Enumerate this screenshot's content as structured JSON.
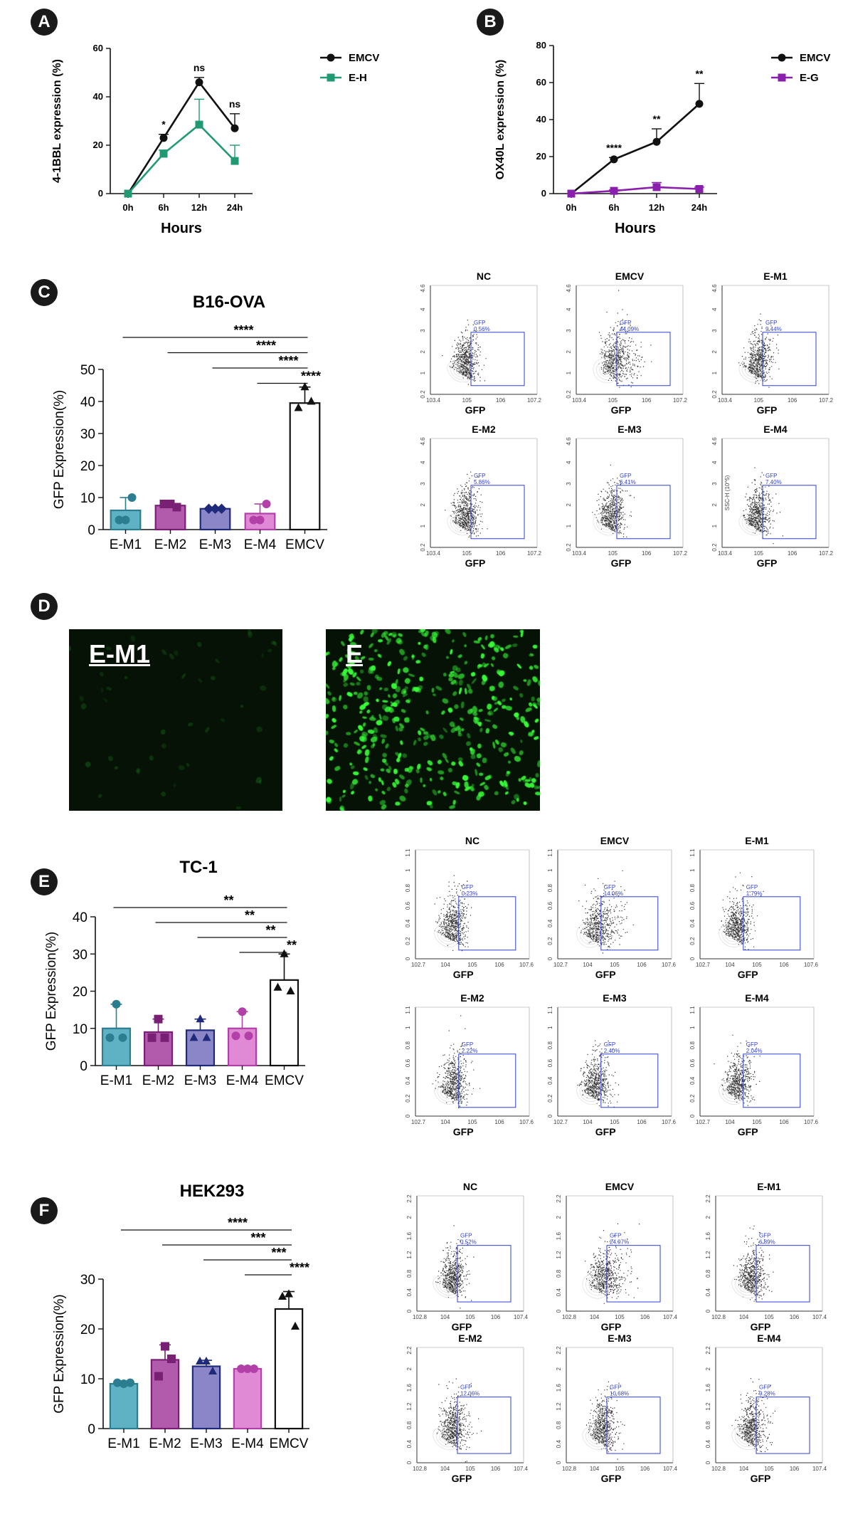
{
  "panels": {
    "A": "A",
    "B": "B",
    "C": "C",
    "D": "D",
    "E": "E",
    "F": "F"
  },
  "colors": {
    "emcv": "#111111",
    "eh": "#1f9a73",
    "eg": "#8a1fae",
    "m1": "#5fb2c3",
    "m2": "#b25bad",
    "m3": "#8a86c8",
    "m4": "#e08ad6",
    "m1_edge": "#2b7d8f",
    "m2_edge": "#7a2074",
    "m3_edge": "#1f2a7a",
    "m4_edge": "#b33fa8",
    "gate": "#2f3fd0",
    "gfp_green": "#39ff39"
  },
  "chart_data": [
    {
      "id": "A",
      "type": "line",
      "categories": [
        "0h",
        "6h",
        "12h",
        "24h"
      ],
      "xlabel": "Hours",
      "ylabel": "4-1BBL expression (%)",
      "ylim": [
        0,
        60
      ],
      "yticks": [
        "0",
        "20",
        "40",
        "60"
      ],
      "series": [
        {
          "name": "EMCV",
          "values": [
            0,
            23,
            46,
            27
          ],
          "err": [
            0,
            1.5,
            2,
            6
          ],
          "color": "#111111",
          "marker": "circle"
        },
        {
          "name": "E-H",
          "values": [
            0,
            16.5,
            28.5,
            13.5
          ],
          "err": [
            0,
            1.5,
            10.5,
            6.5
          ],
          "color": "#1f9a73",
          "marker": "square"
        }
      ],
      "annotations": [
        "",
        "*",
        "ns",
        "ns"
      ],
      "legend": "right"
    },
    {
      "id": "B",
      "type": "line",
      "categories": [
        "0h",
        "6h",
        "12h",
        "24h"
      ],
      "xlabel": "Hours",
      "ylabel": "OX40L expression (%)",
      "ylim": [
        0,
        80
      ],
      "yticks": [
        "0",
        "20",
        "40",
        "60",
        "80"
      ],
      "series": [
        {
          "name": "EMCV",
          "values": [
            0,
            18.5,
            28,
            48.5
          ],
          "err": [
            0,
            1,
            7,
            11
          ],
          "color": "#111111",
          "marker": "circle"
        },
        {
          "name": "E-G",
          "values": [
            0,
            1.5,
            3.5,
            2.5
          ],
          "err": [
            0,
            0.5,
            2.5,
            1
          ],
          "color": "#8a1fae",
          "marker": "square"
        }
      ],
      "annotations": [
        "",
        "****",
        "**",
        "**"
      ],
      "legend": "right"
    },
    {
      "id": "C",
      "type": "bar",
      "title": "B16-OVA",
      "categories": [
        "E-M1",
        "E-M2",
        "E-M3",
        "E-M4",
        "EMCV"
      ],
      "values": [
        6,
        7.5,
        6.5,
        5,
        39.5
      ],
      "err": [
        4,
        0.5,
        0.5,
        3,
        5
      ],
      "points": [
        [
          3,
          3,
          10
        ],
        [
          8,
          8,
          7
        ],
        [
          6.5,
          6.5,
          6.5
        ],
        [
          3,
          3,
          8
        ],
        [
          44.5,
          38,
          40
        ]
      ],
      "ylabel": "GFP Expression(%)",
      "ylim": [
        0,
        50
      ],
      "yticks": [
        "0",
        "10",
        "20",
        "30",
        "40",
        "50"
      ],
      "significance": [
        "****",
        "****",
        "****",
        "****"
      ],
      "marker": [
        "circle",
        "square",
        "diamond",
        "circle",
        "triangle"
      ]
    },
    {
      "id": "E",
      "type": "bar",
      "title": "TC-1",
      "categories": [
        "E-M1",
        "E-M2",
        "E-M3",
        "E-M4",
        "EMCV"
      ],
      "values": [
        10,
        9,
        9.5,
        10,
        23
      ],
      "err": [
        6.5,
        3.5,
        3,
        4.5,
        7
      ],
      "points": [
        [
          16.5,
          7.5,
          7.5
        ],
        [
          12.5,
          7.5,
          7.5
        ],
        [
          12.5,
          7.5,
          7.5
        ],
        [
          14.5,
          8,
          8
        ],
        [
          30,
          21,
          20
        ]
      ],
      "ylabel": "GFP Expression(%)",
      "ylim": [
        0,
        40
      ],
      "yticks": [
        "0",
        "10",
        "20",
        "30",
        "40"
      ],
      "significance": [
        "**",
        "**",
        "**",
        "**"
      ],
      "marker": [
        "circle",
        "square",
        "triangle",
        "circle",
        "triangle"
      ]
    },
    {
      "id": "F",
      "type": "bar",
      "title": "HEK293",
      "categories": [
        "E-M1",
        "E-M2",
        "E-M3",
        "E-M4",
        "EMCV"
      ],
      "values": [
        9,
        13.8,
        12.5,
        12,
        24
      ],
      "err": [
        0.3,
        3,
        1.2,
        0.3,
        3.5
      ],
      "points": [
        [
          9,
          9.2,
          9.2
        ],
        [
          16.5,
          10.5,
          14
        ],
        [
          13.5,
          13.5,
          11.5
        ],
        [
          12,
          12,
          12
        ],
        [
          27,
          26.5,
          20.5
        ]
      ],
      "ylabel": "GFP Expression(%)",
      "ylim": [
        0,
        30
      ],
      "yticks": [
        "0",
        "10",
        "20",
        "30"
      ],
      "significance": [
        "****",
        "***",
        "***",
        "****"
      ],
      "marker": [
        "circle",
        "square",
        "triangle",
        "circle",
        "triangle"
      ]
    }
  ],
  "flow": {
    "C": {
      "y_tick_labels": [
        "0.2",
        "1",
        "2",
        "3",
        "4",
        "4.6"
      ],
      "x_tick_labels": [
        "10^3.4",
        "10^5",
        "10^6",
        "10^7.2"
      ],
      "xlabel": "GFP",
      "ylabel_alt": "SSC-H (10^5)",
      "plots": [
        {
          "name": "NC",
          "gate_label": "GFP",
          "gate_value": "0.56%",
          "spread": 0.3
        },
        {
          "name": "EMCV",
          "gate_label": "GFP",
          "gate_value": "44.09%",
          "spread": 1.0
        },
        {
          "name": "E-M1",
          "gate_label": "GFP",
          "gate_value": "9.44%",
          "spread": 0.45
        },
        {
          "name": "E-M2",
          "gate_label": "GFP",
          "gate_value": "5.86%",
          "spread": 0.4
        },
        {
          "name": "E-M3",
          "gate_label": "GFP",
          "gate_value": "6.41%",
          "spread": 0.42
        },
        {
          "name": "E-M4",
          "gate_label": "GFP",
          "gate_value": "7.40%",
          "spread": 0.42
        }
      ]
    },
    "E": {
      "y_tick_labels": [
        "0",
        "0.2",
        "0.4",
        "0.6",
        "0.8",
        "1",
        "1.1"
      ],
      "x_tick_labels": [
        "10^2.7",
        "10^4",
        "10^5",
        "10^6",
        "10^7.6"
      ],
      "xlabel": "GFP",
      "plots": [
        {
          "name": "NC",
          "gate_label": "GFP",
          "gate_value": "0.23%",
          "spread": 0.3
        },
        {
          "name": "EMCV",
          "gate_label": "GFP",
          "gate_value": "14.06%",
          "spread": 0.8
        },
        {
          "name": "E-M1",
          "gate_label": "GFP",
          "gate_value": "1.79%",
          "spread": 0.4
        },
        {
          "name": "E-M2",
          "gate_label": "GFP",
          "gate_value": "2.22%",
          "spread": 0.4
        },
        {
          "name": "E-M3",
          "gate_label": "GFP",
          "gate_value": "2.40%",
          "spread": 0.42
        },
        {
          "name": "E-M4",
          "gate_label": "GFP",
          "gate_value": "2.04%",
          "spread": 0.4
        }
      ]
    },
    "F": {
      "y_tick_labels": [
        "0",
        "0.4",
        "0.8",
        "1.2",
        "1.6",
        "2",
        "2.2"
      ],
      "x_tick_labels": [
        "10^2.8",
        "10^4",
        "10^5",
        "10^6",
        "10^7.4"
      ],
      "xlabel": "GFP",
      "plots": [
        {
          "name": "NC",
          "gate_label": "GFP",
          "gate_value": "0.52%",
          "spread": 0.35
        },
        {
          "name": "EMCV",
          "gate_label": "GFP",
          "gate_value": "24.97%",
          "spread": 0.9
        },
        {
          "name": "E-M1",
          "gate_label": "GFP",
          "gate_value": "6.89%",
          "spread": 0.45
        },
        {
          "name": "E-M2",
          "gate_label": "GFP",
          "gate_value": "12.06%",
          "spread": 0.55
        },
        {
          "name": "E-M3",
          "gate_label": "GFP",
          "gate_value": "10.68%",
          "spread": 0.52
        },
        {
          "name": "E-M4",
          "gate_label": "GFP",
          "gate_value": "9.28%",
          "spread": 0.5
        }
      ]
    }
  },
  "micrographs": [
    {
      "label": "E-M1",
      "density": 0.05
    },
    {
      "label": "E",
      "density": 1.0
    }
  ]
}
